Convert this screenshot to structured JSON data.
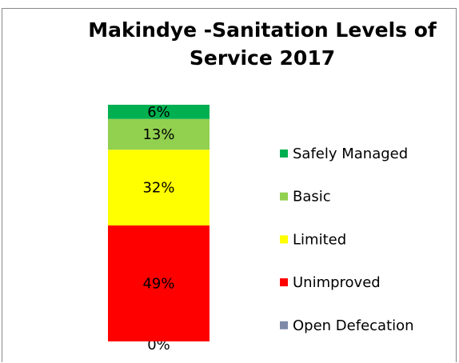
{
  "chart_data": {
    "type": "stacked_bar",
    "title": "Makindye -Sanitation Levels of Service 2017",
    "categories": [
      null
    ],
    "series": [
      {
        "name": "Open Defecation",
        "color": "#7f8aa8",
        "values": [
          0
        ],
        "value_labels": [
          "0%"
        ]
      },
      {
        "name": "Unimproved",
        "color": "#ff0000",
        "values": [
          49
        ],
        "value_labels": [
          "49%"
        ]
      },
      {
        "name": "Limited",
        "color": "#ffff00",
        "values": [
          32
        ],
        "value_labels": [
          "32%"
        ]
      },
      {
        "name": "Basic",
        "color": "#92d050",
        "values": [
          13
        ],
        "value_labels": [
          "13%"
        ]
      },
      {
        "name": "Safely Managed",
        "color": "#00b050",
        "values": [
          6
        ],
        "value_labels": [
          "6%"
        ]
      }
    ],
    "ylim": [
      0,
      100
    ],
    "legend": "right"
  }
}
